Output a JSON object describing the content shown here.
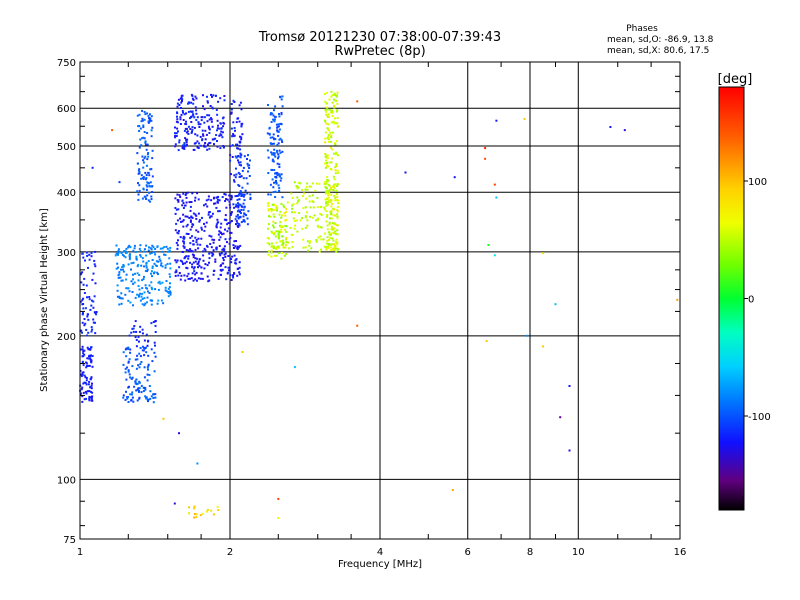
{
  "chart_data": {
    "type": "scatter",
    "title": "Tromsø 20121230 07:38:00-07:39:43",
    "subtitle": "RwPretec (8p)",
    "xlabel": "Frequency [MHz]",
    "ylabel": "Stationary phase Virtual Height [km]",
    "x_scale": "log2",
    "y_scale": "log",
    "xlim": [
      1,
      16
    ],
    "ylim": [
      75,
      750
    ],
    "grid": true,
    "x_ticks": [
      {
        "value": 1,
        "label": "1"
      },
      {
        "value": 2,
        "label": "2"
      },
      {
        "value": 4,
        "label": "4"
      },
      {
        "value": 6,
        "label": "6"
      },
      {
        "value": 8,
        "label": "8"
      },
      {
        "value": 10,
        "label": "10"
      },
      {
        "value": 16,
        "label": "16"
      }
    ],
    "y_ticks": [
      {
        "value": 75,
        "label": "75"
      },
      {
        "value": 100,
        "label": "100"
      },
      {
        "value": 200,
        "label": "200"
      },
      {
        "value": 300,
        "label": "300"
      },
      {
        "value": 400,
        "label": "400"
      },
      {
        "value": 500,
        "label": "500"
      },
      {
        "value": 600,
        "label": "600"
      },
      {
        "value": 750,
        "label": "750"
      }
    ],
    "phases_info": {
      "title": "Phases",
      "line_o": "mean, sd,O: -86.9, 13.8",
      "line_x": "mean, sd,X: 80.6, 17.5"
    },
    "colorbar": {
      "label": "[deg]",
      "range": [
        -180,
        180
      ],
      "ticks": [
        {
          "value": 100,
          "label": "100"
        },
        {
          "value": 0,
          "label": "0"
        },
        {
          "value": -100,
          "label": "-100"
        }
      ]
    },
    "clusters": [
      {
        "f": [
          1.0,
          1.06
        ],
        "h": [
          145,
          190
        ],
        "phase": [
          -115,
          -100
        ],
        "n": 90
      },
      {
        "f": [
          1.0,
          1.08
        ],
        "h": [
          200,
          300
        ],
        "phase": [
          -110,
          -95
        ],
        "n": 70
      },
      {
        "f": [
          1.22,
          1.42
        ],
        "h": [
          145,
          190
        ],
        "phase": [
          -100,
          -70
        ],
        "n": 120
      },
      {
        "f": [
          1.25,
          1.42
        ],
        "h": [
          190,
          215
        ],
        "phase": [
          -110,
          -95
        ],
        "n": 30
      },
      {
        "f": [
          1.18,
          1.52
        ],
        "h": [
          230,
          310
        ],
        "phase": [
          -75,
          -55
        ],
        "n": 220
      },
      {
        "f": [
          1.3,
          1.4
        ],
        "h": [
          380,
          600
        ],
        "phase": [
          -95,
          -70
        ],
        "n": 110
      },
      {
        "f": [
          1.55,
          1.95
        ],
        "h": [
          490,
          640
        ],
        "phase": [
          -120,
          -95
        ],
        "n": 200
      },
      {
        "f": [
          2.0,
          2.12
        ],
        "h": [
          420,
          630
        ],
        "phase": [
          -120,
          -95
        ],
        "n": 60
      },
      {
        "f": [
          1.55,
          2.1
        ],
        "h": [
          260,
          400
        ],
        "phase": [
          -120,
          -100
        ],
        "n": 380
      },
      {
        "f": [
          2.05,
          2.2
        ],
        "h": [
          340,
          480
        ],
        "phase": [
          -100,
          -85
        ],
        "n": 80
      },
      {
        "f": [
          2.38,
          2.55
        ],
        "h": [
          390,
          640
        ],
        "phase": [
          -95,
          -75
        ],
        "n": 120
      },
      {
        "f": [
          2.38,
          2.6
        ],
        "h": [
          290,
          380
        ],
        "phase": [
          60,
          110
        ],
        "n": 110
      },
      {
        "f": [
          2.6,
          3.2
        ],
        "h": [
          300,
          420
        ],
        "phase": [
          70,
          100
        ],
        "n": 120
      },
      {
        "f": [
          3.1,
          3.3
        ],
        "h": [
          300,
          650
        ],
        "phase": [
          70,
          110
        ],
        "n": 240
      },
      {
        "f": [
          1.65,
          1.9
        ],
        "h": [
          83,
          88
        ],
        "phase": [
          100,
          130
        ],
        "n": 16
      }
    ],
    "scattered_points": [
      {
        "f": 1.06,
        "h": 450,
        "phase": -105
      },
      {
        "f": 1.2,
        "h": 420,
        "phase": -95
      },
      {
        "f": 1.16,
        "h": 540,
        "phase": 150
      },
      {
        "f": 1.58,
        "h": 125,
        "phase": -120
      },
      {
        "f": 1.47,
        "h": 134,
        "phase": 120
      },
      {
        "f": 1.72,
        "h": 108,
        "phase": -60
      },
      {
        "f": 1.55,
        "h": 89,
        "phase": -120
      },
      {
        "f": 2.12,
        "h": 185,
        "phase": 120
      },
      {
        "f": 2.7,
        "h": 172,
        "phase": -40
      },
      {
        "f": 2.5,
        "h": 91,
        "phase": 160
      },
      {
        "f": 2.5,
        "h": 83,
        "phase": 100
      },
      {
        "f": 3.6,
        "h": 620,
        "phase": 150
      },
      {
        "f": 3.6,
        "h": 210,
        "phase": 150
      },
      {
        "f": 4.5,
        "h": 440,
        "phase": -110
      },
      {
        "f": 5.65,
        "h": 430,
        "phase": -110
      },
      {
        "f": 5.6,
        "h": 95,
        "phase": 130
      },
      {
        "f": 6.5,
        "h": 495,
        "phase": 170
      },
      {
        "f": 6.5,
        "h": 470,
        "phase": 155
      },
      {
        "f": 6.8,
        "h": 415,
        "phase": 160
      },
      {
        "f": 6.85,
        "h": 390,
        "phase": -40
      },
      {
        "f": 6.6,
        "h": 310,
        "phase": 30
      },
      {
        "f": 6.8,
        "h": 295,
        "phase": -20
      },
      {
        "f": 6.85,
        "h": 565,
        "phase": -110
      },
      {
        "f": 7.8,
        "h": 570,
        "phase": 120
      },
      {
        "f": 6.55,
        "h": 195,
        "phase": 120
      },
      {
        "f": 7.9,
        "h": 200,
        "phase": -60
      },
      {
        "f": 8.5,
        "h": 298,
        "phase": 110
      },
      {
        "f": 8.5,
        "h": 190,
        "phase": 120
      },
      {
        "f": 9.0,
        "h": 233,
        "phase": -40
      },
      {
        "f": 9.2,
        "h": 135,
        "phase": -140
      },
      {
        "f": 9.6,
        "h": 157,
        "phase": -110
      },
      {
        "f": 9.6,
        "h": 115,
        "phase": -120
      },
      {
        "f": 11.6,
        "h": 548,
        "phase": -110
      },
      {
        "f": 12.4,
        "h": 540,
        "phase": -120
      },
      {
        "f": 15.8,
        "h": 238,
        "phase": 130
      }
    ]
  }
}
